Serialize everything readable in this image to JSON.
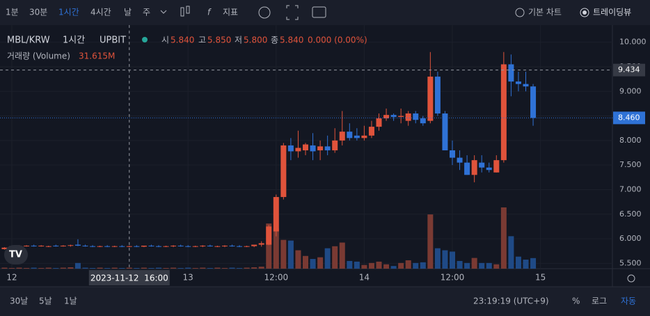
{
  "toolbar": {
    "intervals": [
      "1분",
      "30분",
      "1시간",
      "4시간",
      "날",
      "주"
    ],
    "indicators": "지표",
    "chart_modes": [
      "기본 차트",
      "트레이딩뷰"
    ]
  },
  "footer": {
    "ranges": [
      "30날",
      "5날",
      "1날"
    ],
    "clock": "23:19:19 (UTC+9)",
    "scale_options": [
      "%",
      "로그",
      "자동"
    ]
  },
  "chart_data": {
    "type": "candlestick",
    "symbol": "MBL/KRW",
    "interval": "1시간",
    "exchange": "UPBIT",
    "legend": {
      "open_label": "시",
      "open": "5.840",
      "high_label": "고",
      "high": "5.850",
      "low_label": "저",
      "low": "5.800",
      "close_label": "종",
      "close": "5.840",
      "change": "0.000 (0.00%)"
    },
    "volume_label": "거래량 (Volume)",
    "volume_value": "31.615M",
    "up_color": "#e0533b",
    "down_color": "#2f72d6",
    "volume_up_color": "#7a3a33",
    "volume_down_color": "#1f4a86",
    "ylim": [
      5.3,
      10.25
    ],
    "yticks": [
      {
        "value": 10,
        "label": "10.000"
      },
      {
        "value": 9.5,
        "label": "9.500"
      },
      {
        "value": 9,
        "label": "9.000"
      },
      {
        "value": 8.5,
        "label": "8.500"
      },
      {
        "value": 8,
        "label": "8.000"
      },
      {
        "value": 7.5,
        "label": "7.500"
      },
      {
        "value": 7,
        "label": "7.000"
      },
      {
        "value": 6.5,
        "label": "6.500"
      },
      {
        "value": 6,
        "label": "6.000"
      },
      {
        "value": 5.5,
        "label": "5.500"
      }
    ],
    "xticks": [
      {
        "value": 1,
        "label": "12"
      },
      {
        "value": 25,
        "label": "13"
      },
      {
        "value": 37,
        "label": "12:00"
      },
      {
        "value": 49,
        "label": "14"
      },
      {
        "value": 61,
        "label": "12:00"
      },
      {
        "value": 73,
        "label": "15"
      }
    ],
    "crosshair": {
      "time": {
        "value": 17,
        "label": "2023-11-12  16:00"
      },
      "price": {
        "value": 9.434,
        "label": "9.434"
      }
    },
    "last_price": {
      "value": 8.46,
      "label": "8.460"
    },
    "open": [
      5.79,
      5.84,
      5.85,
      5.85,
      5.86,
      5.85,
      5.84,
      5.86,
      5.85,
      5.86,
      5.88,
      5.86,
      5.85,
      5.84,
      5.85,
      5.84,
      5.85,
      5.84,
      5.85,
      5.84,
      5.86,
      5.85,
      5.84,
      5.85,
      5.86,
      5.85,
      5.84,
      5.85,
      5.86,
      5.84,
      5.85,
      5.86,
      5.85,
      5.84,
      5.85,
      5.88,
      5.88,
      6.15,
      6.85,
      7.9,
      7.78,
      7.8,
      7.9,
      7.8,
      7.88,
      7.8,
      8.0,
      8.18,
      8.1,
      8.05,
      8.1,
      8.28,
      8.45,
      8.52,
      8.48,
      8.4,
      8.55,
      8.45,
      8.4,
      9.3,
      8.55,
      7.8,
      7.65,
      7.55,
      7.3,
      7.55,
      7.45,
      7.35,
      7.6,
      9.55,
      9.2,
      9.15,
      9.1
    ],
    "high": [
      5.83,
      5.86,
      5.87,
      5.87,
      5.88,
      5.87,
      5.86,
      5.88,
      5.87,
      5.88,
      5.99,
      5.88,
      5.87,
      5.86,
      5.87,
      5.86,
      5.87,
      5.86,
      5.87,
      5.86,
      5.88,
      5.87,
      5.86,
      5.87,
      5.88,
      5.87,
      5.86,
      5.87,
      5.88,
      5.86,
      5.87,
      5.88,
      5.87,
      5.86,
      5.87,
      5.95,
      6.28,
      6.9,
      7.95,
      8.05,
      8.2,
      7.95,
      8.15,
      8.0,
      8.1,
      8.25,
      8.6,
      8.35,
      8.25,
      8.3,
      8.4,
      8.55,
      8.65,
      8.55,
      8.65,
      8.6,
      8.6,
      8.5,
      9.8,
      9.4,
      8.6,
      8.0,
      7.8,
      7.7,
      7.7,
      7.7,
      7.55,
      7.7,
      9.8,
      9.75,
      9.4,
      9.4,
      9.15
    ],
    "low": [
      5.78,
      5.83,
      5.84,
      5.84,
      5.84,
      5.84,
      5.83,
      5.84,
      5.84,
      5.84,
      5.85,
      5.84,
      5.83,
      5.83,
      5.83,
      5.83,
      5.83,
      5.83,
      5.83,
      5.83,
      5.84,
      5.83,
      5.83,
      5.83,
      5.84,
      5.83,
      5.83,
      5.83,
      5.84,
      5.83,
      5.83,
      5.84,
      5.83,
      5.83,
      5.83,
      5.84,
      5.87,
      6.05,
      6.8,
      7.6,
      7.65,
      7.7,
      7.6,
      7.6,
      7.7,
      7.75,
      7.9,
      8.0,
      8.0,
      8.0,
      8.05,
      8.2,
      8.4,
      8.4,
      8.35,
      8.3,
      8.35,
      8.3,
      8.35,
      8.5,
      7.8,
      7.5,
      7.4,
      7.3,
      7.15,
      7.35,
      7.35,
      7.35,
      7.55,
      8.9,
      9.0,
      9.0,
      8.3
    ],
    "close": [
      5.82,
      5.85,
      5.86,
      5.86,
      5.85,
      5.86,
      5.85,
      5.85,
      5.86,
      5.87,
      5.86,
      5.85,
      5.84,
      5.85,
      5.84,
      5.85,
      5.84,
      5.85,
      5.84,
      5.86,
      5.85,
      5.84,
      5.85,
      5.86,
      5.85,
      5.84,
      5.85,
      5.86,
      5.85,
      5.85,
      5.86,
      5.85,
      5.84,
      5.85,
      5.88,
      5.91,
      6.25,
      6.85,
      7.9,
      7.78,
      7.85,
      7.92,
      7.78,
      7.88,
      7.8,
      8.0,
      8.18,
      8.05,
      8.05,
      8.1,
      8.28,
      8.45,
      8.52,
      8.48,
      8.5,
      8.55,
      8.42,
      8.35,
      9.3,
      8.55,
      7.8,
      7.65,
      7.55,
      7.3,
      7.6,
      7.45,
      7.4,
      7.6,
      9.55,
      9.2,
      9.15,
      9.1,
      8.46
    ],
    "volume": [
      3,
      2,
      3,
      2,
      3,
      2,
      3,
      2,
      3,
      4,
      17,
      3,
      2,
      3,
      2,
      3,
      2,
      3,
      2,
      3,
      2,
      3,
      2,
      3,
      2,
      3,
      2,
      3,
      2,
      3,
      2,
      3,
      2,
      3,
      4,
      6,
      135,
      120,
      86,
      84,
      55,
      38,
      29,
      34,
      61,
      67,
      78,
      23,
      21,
      11,
      17,
      21,
      13,
      8,
      17,
      25,
      17,
      19,
      162,
      61,
      55,
      51,
      23,
      17,
      32,
      17,
      17,
      13,
      183,
      97,
      36,
      27,
      31.615
    ]
  }
}
